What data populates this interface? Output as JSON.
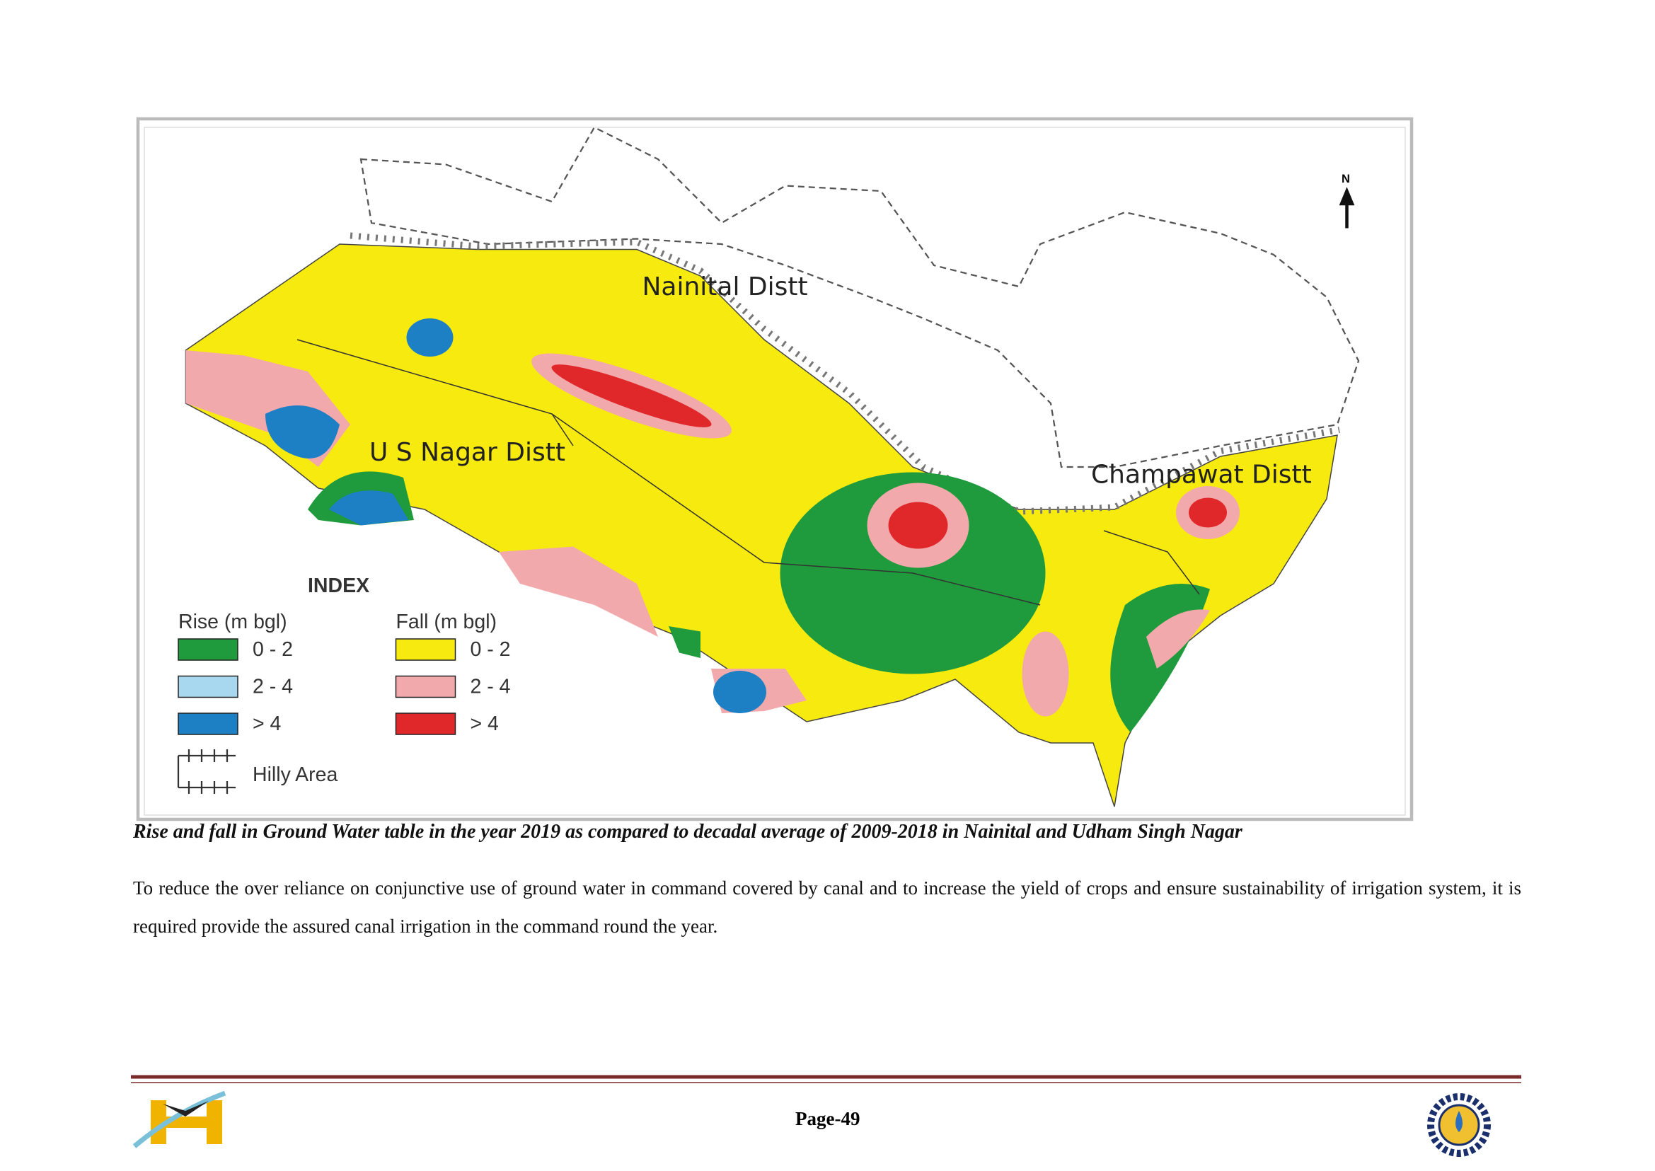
{
  "map": {
    "districts": [
      "Nainital  Distt",
      "U S Nagar Distt",
      "Champawat  Distt"
    ],
    "north": "N",
    "index": {
      "title": "INDEX",
      "rise_title": "Rise (m bgl)",
      "fall_title": "Fall (m bgl)",
      "rise": [
        "0 - 2",
        "2 - 4",
        "> 4"
      ],
      "fall": [
        "0 - 2",
        "2 - 4",
        "> 4"
      ],
      "hilly": "Hilly Area"
    }
  },
  "caption": "Rise and fall in Ground Water table in the year 2019 as compared to decadal average of 2009-2018 in Nainital and Udham Singh Nagar",
  "paragraph": "To  reduce the over reliance on conjunctive use of ground water in command covered by canal and to increase the  yield of crops and ensure sustainability of irrigation system, it is required  provide the assured canal irrigation in the command round the year.",
  "footer": {
    "page": "Page-49"
  }
}
